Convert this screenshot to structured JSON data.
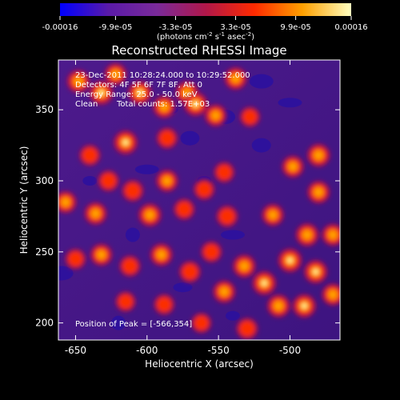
{
  "chart_data": {
    "type": "heatmap",
    "title": "Reconstructed RHESSI Image",
    "xlabel": "Heliocentric X (arcsec)",
    "ylabel": "Heliocentric Y (arcsec)",
    "xlim": [
      -662,
      -465
    ],
    "ylim": [
      188,
      385
    ],
    "x_ticks": [
      "-650",
      "-600",
      "-550",
      "-500"
    ],
    "x_tick_values": [
      -650,
      -600,
      -550,
      -500
    ],
    "y_ticks": [
      "200",
      "250",
      "300",
      "350"
    ],
    "y_tick_values": [
      200,
      250,
      300,
      350
    ],
    "colorbar": {
      "ticks": [
        "-0.00016",
        "-9.9e-05",
        "-3.3e-05",
        "3.3e-05",
        "9.9e-05",
        "0.00016"
      ],
      "tick_values": [
        -0.00016,
        -9.9e-05,
        -3.3e-05,
        3.3e-05,
        9.9e-05,
        0.00016
      ],
      "range": [
        -0.00016,
        0.00016
      ],
      "units_label": "(photons cm",
      "units_exp1": "-2",
      "units_mid1": " s",
      "units_exp2": "-1",
      "units_mid2": " asec",
      "units_exp3": "-2",
      "units_close": ")",
      "colors": [
        "#0000ff",
        "#5a1aa8",
        "#7a2a9a",
        "#b0174a",
        "#ff2a00",
        "#ffa000",
        "#ffffc0"
      ]
    },
    "annotations": {
      "time_range": "23-Dec-2011 10:28:24.000 to 10:29:52.000",
      "detectors": "Detectors: 4F 5F 6F 7F 8F, Att 0",
      "energy_range": "Energy Range: 25.0 - 50.0 keV",
      "clean": "Clean",
      "total_counts": "Total counts: 1.57E+03",
      "peak": "Position of Peak = [-566,354]"
    },
    "blobs": [
      {
        "x": -648,
        "y": 370,
        "a": 0.9
      },
      {
        "x": -632,
        "y": 362,
        "a": 1.0
      },
      {
        "x": -622,
        "y": 375,
        "a": 0.8
      },
      {
        "x": -605,
        "y": 362,
        "a": 0.95
      },
      {
        "x": -588,
        "y": 352,
        "a": 0.85
      },
      {
        "x": -572,
        "y": 362,
        "a": 0.9
      },
      {
        "x": -566,
        "y": 354,
        "a": 1.0
      },
      {
        "x": -552,
        "y": 346,
        "a": 0.8
      },
      {
        "x": -538,
        "y": 372,
        "a": 0.85
      },
      {
        "x": -615,
        "y": 327,
        "a": 1.0
      },
      {
        "x": -640,
        "y": 318,
        "a": 0.7
      },
      {
        "x": -528,
        "y": 345,
        "a": 0.6
      },
      {
        "x": -586,
        "y": 330,
        "a": 0.7
      },
      {
        "x": -657,
        "y": 285,
        "a": 0.8
      },
      {
        "x": -636,
        "y": 277,
        "a": 0.85
      },
      {
        "x": -627,
        "y": 300,
        "a": 0.7
      },
      {
        "x": -610,
        "y": 293,
        "a": 0.75
      },
      {
        "x": -598,
        "y": 276,
        "a": 0.9
      },
      {
        "x": -586,
        "y": 300,
        "a": 0.8
      },
      {
        "x": -574,
        "y": 280,
        "a": 0.7
      },
      {
        "x": -560,
        "y": 294,
        "a": 0.7
      },
      {
        "x": -544,
        "y": 275,
        "a": 0.75
      },
      {
        "x": -546,
        "y": 306,
        "a": 0.65
      },
      {
        "x": -498,
        "y": 310,
        "a": 0.8
      },
      {
        "x": -480,
        "y": 318,
        "a": 0.9
      },
      {
        "x": -480,
        "y": 292,
        "a": 0.85
      },
      {
        "x": -512,
        "y": 276,
        "a": 0.8
      },
      {
        "x": -488,
        "y": 262,
        "a": 0.9
      },
      {
        "x": -470,
        "y": 262,
        "a": 0.8
      },
      {
        "x": -500,
        "y": 244,
        "a": 1.0
      },
      {
        "x": -482,
        "y": 236,
        "a": 0.95
      },
      {
        "x": -518,
        "y": 228,
        "a": 1.0
      },
      {
        "x": -532,
        "y": 240,
        "a": 0.9
      },
      {
        "x": -546,
        "y": 222,
        "a": 0.85
      },
      {
        "x": -508,
        "y": 212,
        "a": 0.9
      },
      {
        "x": -490,
        "y": 212,
        "a": 0.95
      },
      {
        "x": -470,
        "y": 220,
        "a": 0.8
      },
      {
        "x": -530,
        "y": 196,
        "a": 0.75
      },
      {
        "x": -650,
        "y": 245,
        "a": 0.65
      },
      {
        "x": -632,
        "y": 248,
        "a": 0.8
      },
      {
        "x": -612,
        "y": 240,
        "a": 0.7
      },
      {
        "x": -590,
        "y": 248,
        "a": 0.85
      },
      {
        "x": -570,
        "y": 236,
        "a": 0.75
      },
      {
        "x": -555,
        "y": 250,
        "a": 0.7
      },
      {
        "x": -615,
        "y": 215,
        "a": 0.6
      },
      {
        "x": -588,
        "y": 213,
        "a": 0.65
      },
      {
        "x": -562,
        "y": 200,
        "a": 0.6
      }
    ]
  }
}
